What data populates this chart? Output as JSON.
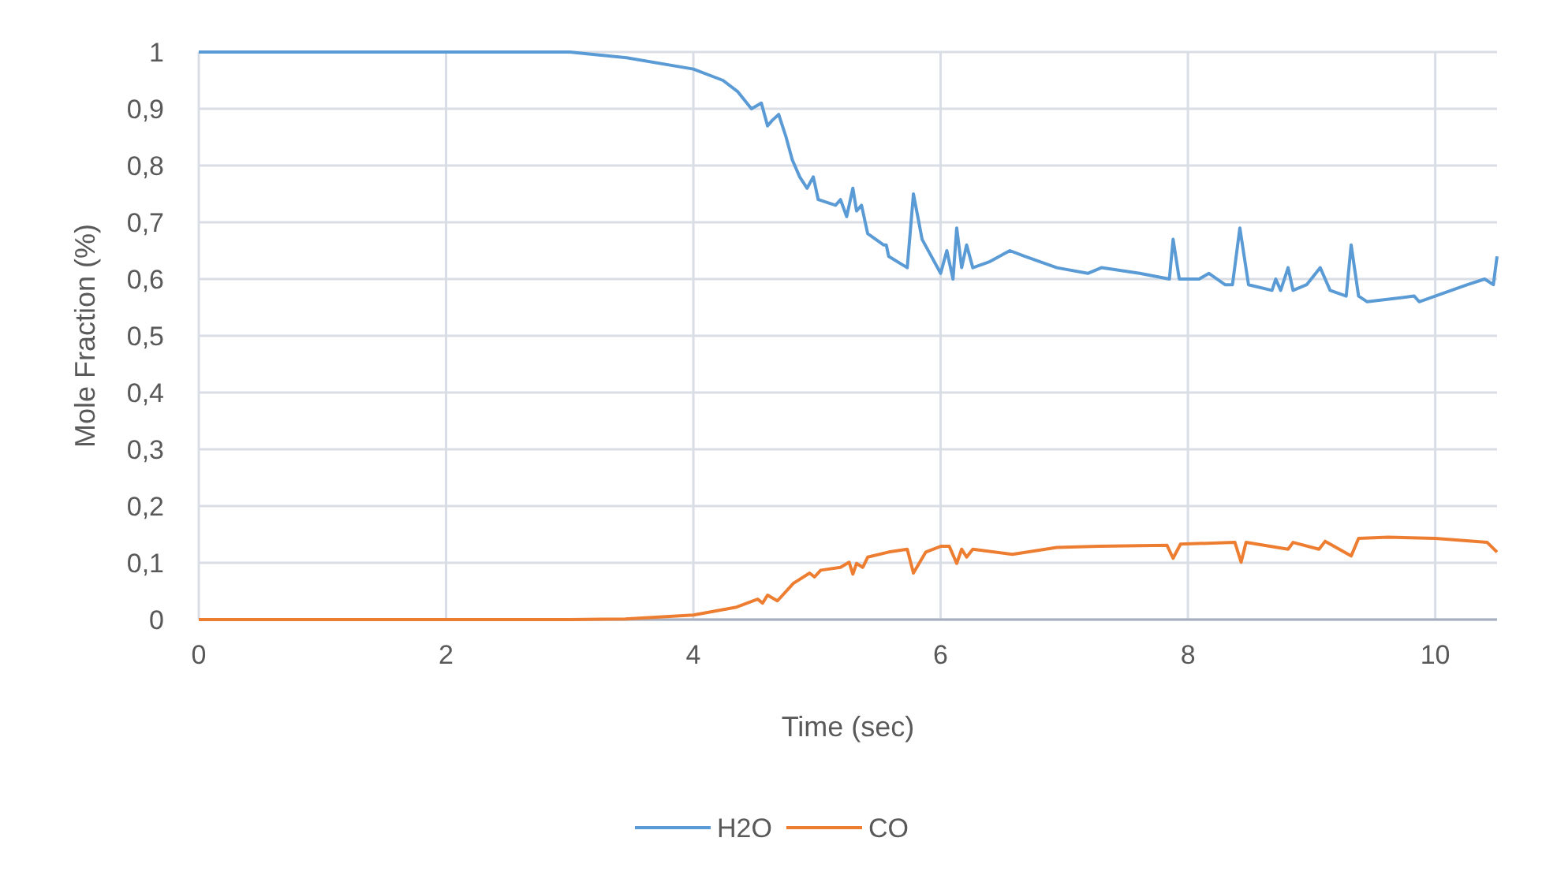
{
  "chart_data": {
    "type": "line",
    "xlabel": "Time (sec)",
    "ylabel": "Mole Fraction (%)",
    "xlim": [
      0,
      10.5
    ],
    "xticks": [
      0,
      2,
      4,
      6,
      8,
      10
    ],
    "ylim": [
      0,
      1
    ],
    "yticks": [
      0,
      {
        "value": 0.1,
        "label": "0,1"
      },
      {
        "value": 0.2,
        "label": "0,2"
      },
      {
        "value": 0.3,
        "label": "0,3"
      },
      {
        "value": 0.4,
        "label": "0,4"
      },
      {
        "value": 0.5,
        "label": "0,5"
      },
      {
        "value": 0.6,
        "label": "0,6"
      },
      {
        "value": 0.7,
        "label": "0,7"
      },
      {
        "value": 0.8,
        "label": "0,8"
      },
      {
        "value": 0.9,
        "label": "0,9"
      },
      1
    ],
    "grid": true,
    "legend": "bottom",
    "marker": "none",
    "line_style": "solid",
    "series": [
      {
        "name": "H2O",
        "color": "#5b9bd5",
        "x": [
          0,
          3,
          3.46,
          4.0,
          4.24,
          4.36,
          4.47,
          4.55,
          4.6,
          4.64,
          4.69,
          4.75,
          4.8,
          4.86,
          4.92,
          4.97,
          5.01,
          5.15,
          5.19,
          5.24,
          5.29,
          5.32,
          5.36,
          5.41,
          5.54,
          5.56,
          5.58,
          5.73,
          5.78,
          5.85,
          6.0,
          6.05,
          6.1,
          6.13,
          6.17,
          6.21,
          6.26,
          6.39,
          6.56,
          6.68,
          6.94,
          7.19,
          7.3,
          7.61,
          7.85,
          7.88,
          7.93,
          8.09,
          8.17,
          8.3,
          8.36,
          8.42,
          8.49,
          8.68,
          8.71,
          8.75,
          8.81,
          8.85,
          8.96,
          9.07,
          9.15,
          9.28,
          9.32,
          9.38,
          9.45,
          9.83,
          9.87,
          10.26,
          10.4,
          10.47,
          10.5
        ],
        "values": [
          1,
          1,
          0.99,
          0.97,
          0.95,
          0.93,
          0.9,
          0.91,
          0.87,
          0.88,
          0.89,
          0.85,
          0.81,
          0.78,
          0.76,
          0.78,
          0.74,
          0.73,
          0.74,
          0.71,
          0.76,
          0.72,
          0.73,
          0.68,
          0.66,
          0.66,
          0.64,
          0.62,
          0.75,
          0.67,
          0.61,
          0.65,
          0.6,
          0.69,
          0.62,
          0.66,
          0.62,
          0.63,
          0.65,
          0.64,
          0.62,
          0.61,
          0.62,
          0.61,
          0.6,
          0.67,
          0.6,
          0.6,
          0.61,
          0.59,
          0.59,
          0.69,
          0.59,
          0.58,
          0.6,
          0.58,
          0.62,
          0.58,
          0.59,
          0.62,
          0.58,
          0.57,
          0.66,
          0.57,
          0.56,
          0.57,
          0.56,
          0.59,
          0.6,
          0.59,
          0.64
        ]
      },
      {
        "name": "CO",
        "color": "#ed7d31",
        "x": [
          0,
          3,
          3.45,
          4.0,
          4.35,
          4.52,
          4.56,
          4.6,
          4.68,
          4.81,
          4.94,
          4.98,
          5.03,
          5.19,
          5.26,
          5.29,
          5.32,
          5.37,
          5.41,
          5.58,
          5.73,
          5.78,
          5.88,
          6.0,
          6.07,
          6.13,
          6.17,
          6.21,
          6.26,
          6.58,
          6.94,
          7.28,
          7.83,
          7.88,
          7.94,
          8.38,
          8.43,
          8.47,
          8.81,
          8.85,
          9.06,
          9.11,
          9.32,
          9.38,
          9.62,
          10.0,
          10.42,
          10.5
        ],
        "values": [
          0,
          0,
          0.001,
          0.008,
          0.022,
          0.036,
          0.029,
          0.043,
          0.033,
          0.064,
          0.082,
          0.075,
          0.087,
          0.092,
          0.101,
          0.08,
          0.099,
          0.092,
          0.11,
          0.119,
          0.124,
          0.082,
          0.119,
          0.129,
          0.129,
          0.099,
          0.124,
          0.11,
          0.124,
          0.115,
          0.127,
          0.129,
          0.131,
          0.108,
          0.133,
          0.136,
          0.101,
          0.136,
          0.124,
          0.136,
          0.124,
          0.138,
          0.112,
          0.143,
          0.145,
          0.143,
          0.136,
          0.119
        ]
      }
    ]
  }
}
